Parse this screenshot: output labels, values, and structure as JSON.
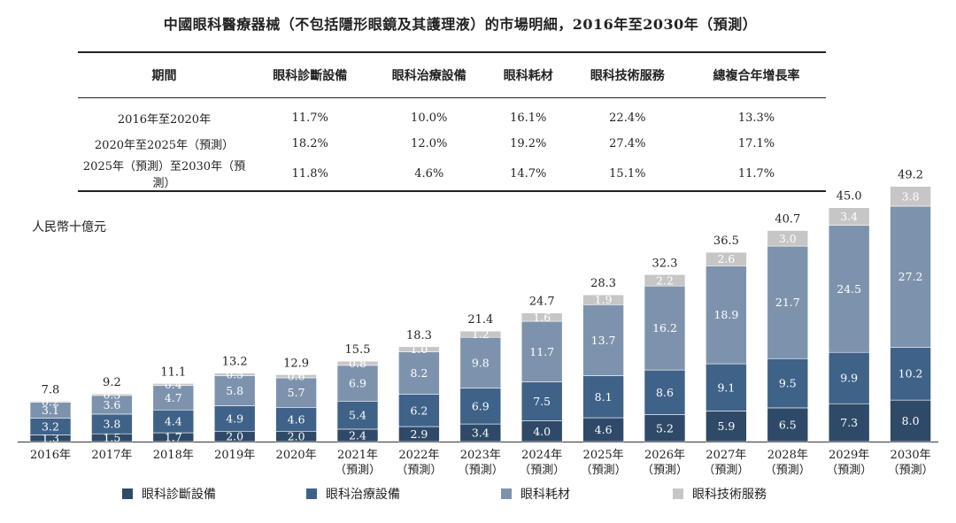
{
  "title": "中國眼科醫療器械（不包括隱形眼鏡及其護理液）的市場明細，2016年至2030年（預測）",
  "cagr_table": {
    "headers": [
      "期間",
      "眼科診斷設備",
      "眼科治療設備",
      "眼科耗材",
      "眼科技術服務",
      "總複合年增長率"
    ],
    "rows": [
      [
        "2016年至2020年",
        "11.7%",
        "10.0%",
        "16.1%",
        "22.4%",
        "13.3%"
      ],
      [
        "2020年至2025年（預測）",
        "18.2%",
        "12.0%",
        "19.2%",
        "27.4%",
        "17.1%"
      ],
      [
        "2025年（預測）至2030年（預測）",
        "11.8%",
        "4.6%",
        "14.7%",
        "15.1%",
        "11.7%"
      ]
    ]
  },
  "chart_data": {
    "type": "bar",
    "stacked": true,
    "unit_label": "人民幣十億元",
    "categories": [
      [
        "2016年"
      ],
      [
        "2017年"
      ],
      [
        "2018年"
      ],
      [
        "2019年"
      ],
      [
        "2020年"
      ],
      [
        "2021年",
        "（預測）"
      ],
      [
        "2022年",
        "（預測）"
      ],
      [
        "2023年",
        "（預測）"
      ],
      [
        "2024年",
        "（預測）"
      ],
      [
        "2025年",
        "（預測）"
      ],
      [
        "2026年",
        "（預測）"
      ],
      [
        "2027年",
        "（預測）"
      ],
      [
        "2028年",
        "（預測）"
      ],
      [
        "2029年",
        "（預測）"
      ],
      [
        "2030年",
        "（預測）"
      ]
    ],
    "series": [
      {
        "name": "眼科診斷設備",
        "color": "#2f4a68",
        "values": [
          1.3,
          1.5,
          1.7,
          2.0,
          2.0,
          2.4,
          2.9,
          3.4,
          4.0,
          4.6,
          5.2,
          5.9,
          6.5,
          7.3,
          8.0
        ]
      },
      {
        "name": "眼科治療設備",
        "color": "#3f6288",
        "values": [
          3.2,
          3.8,
          4.4,
          4.9,
          4.6,
          5.4,
          6.2,
          6.9,
          7.5,
          8.1,
          8.6,
          9.1,
          9.5,
          9.9,
          10.2
        ]
      },
      {
        "name": "眼科耗材",
        "color": "#7d93ad",
        "values": [
          3.1,
          3.6,
          4.7,
          5.8,
          5.7,
          6.9,
          8.2,
          9.8,
          11.7,
          13.7,
          16.2,
          18.9,
          21.7,
          24.5,
          27.2
        ]
      },
      {
        "name": "眼科技術服務",
        "color": "#c6c6c6",
        "values": [
          0.2,
          0.3,
          0.4,
          0.5,
          0.6,
          0.8,
          1.0,
          1.2,
          1.6,
          1.9,
          2.2,
          2.6,
          3.0,
          3.4,
          3.8
        ]
      }
    ],
    "totals": [
      7.8,
      9.2,
      11.1,
      13.2,
      12.9,
      15.5,
      18.3,
      21.4,
      24.7,
      28.3,
      32.3,
      36.5,
      40.7,
      45.0,
      49.2
    ],
    "ylim": [
      0,
      52
    ]
  }
}
